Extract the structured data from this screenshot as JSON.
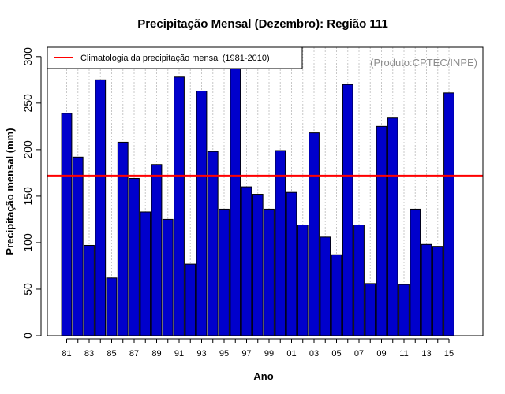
{
  "chart_data": {
    "type": "bar",
    "title": "Precipitação Mensal (Dezembro): Região 111",
    "xlabel": "Ano",
    "ylabel": "Precipitação mensal (mm)",
    "source": "(Produto:CPTEC/INPE)",
    "ylim": [
      0,
      310
    ],
    "yticks": [
      0,
      50,
      100,
      150,
      200,
      250,
      300
    ],
    "grid": "vertical dotted",
    "legend_position": "top-left",
    "categories": [
      "81",
      "82",
      "83",
      "84",
      "85",
      "86",
      "87",
      "88",
      "89",
      "90",
      "91",
      "92",
      "93",
      "94",
      "95",
      "96",
      "97",
      "98",
      "99",
      "00",
      "01",
      "02",
      "03",
      "04",
      "05",
      "06",
      "07",
      "08",
      "09",
      "10",
      "11",
      "12",
      "13",
      "14",
      "15"
    ],
    "xtick_labels": [
      "81",
      "83",
      "85",
      "87",
      "89",
      "91",
      "93",
      "95",
      "97",
      "99",
      "01",
      "03",
      "05",
      "07",
      "09",
      "11",
      "13",
      "15"
    ],
    "series": [
      {
        "name": "Precipitação mensal",
        "color": "#0000cc",
        "values": [
          239,
          192,
          97,
          275,
          62,
          208,
          169,
          133,
          184,
          125,
          278,
          77,
          263,
          198,
          136,
          288,
          160,
          152,
          136,
          199,
          154,
          119,
          218,
          106,
          87,
          270,
          119,
          56,
          225,
          234,
          55,
          136,
          98,
          96,
          261
        ]
      }
    ],
    "reference_line": {
      "label": "Climatologia da precipitação mensal (1981-2010)",
      "value": 172,
      "color": "#ff0000"
    }
  }
}
